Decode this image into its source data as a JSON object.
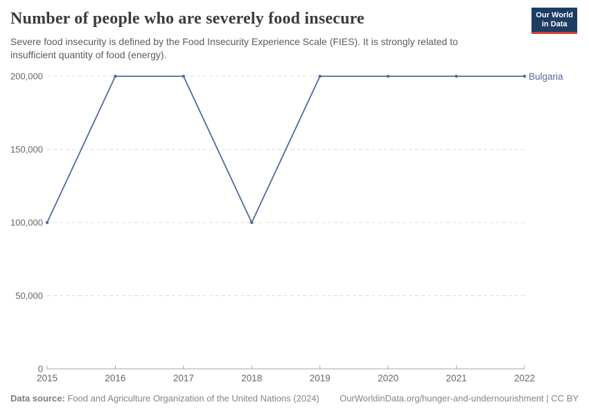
{
  "header": {
    "title": "Number of people who are severely food insecure",
    "subtitle_lines": [
      "Severe food insecurity is defined by the Food Insecurity Experience Scale (FIES). It is strongly related to",
      "insufficient quantity of food (energy)."
    ],
    "logo": {
      "line1": "Our World",
      "line2": "in Data",
      "bg_color": "#1d3d63",
      "stripe_color": "#d93a32"
    }
  },
  "chart_data": {
    "type": "line",
    "title": "Number of people who are severely food insecure",
    "x": [
      2015,
      2016,
      2017,
      2018,
      2019,
      2020,
      2021,
      2022
    ],
    "x_labels": [
      "2015",
      "2016",
      "2017",
      "2018",
      "2019",
      "2020",
      "2021",
      "2022"
    ],
    "series": [
      {
        "name": "Bulgaria",
        "color": "#4c6a9c",
        "values": [
          100000,
          200000,
          200000,
          100000,
          200000,
          200000,
          200000,
          200000
        ]
      }
    ],
    "ylim": [
      0,
      200000
    ],
    "yticks": [
      0,
      50000,
      100000,
      150000,
      200000
    ],
    "ytick_labels": [
      "0",
      "50,000",
      "100,000",
      "150,000",
      "200,000"
    ],
    "grid": "horizontal-dashed",
    "legend_position": "end-of-line",
    "colors": {
      "gridline": "#dcdcdc",
      "axis": "#a5a5a5",
      "tick_text": "#666666"
    }
  },
  "footer": {
    "datasource_label": "Data source:",
    "datasource_value": " Food and Agriculture Organization of the United Nations (2024)",
    "link_text": "OurWorldinData.org/hunger-and-undernourishment | CC BY"
  }
}
